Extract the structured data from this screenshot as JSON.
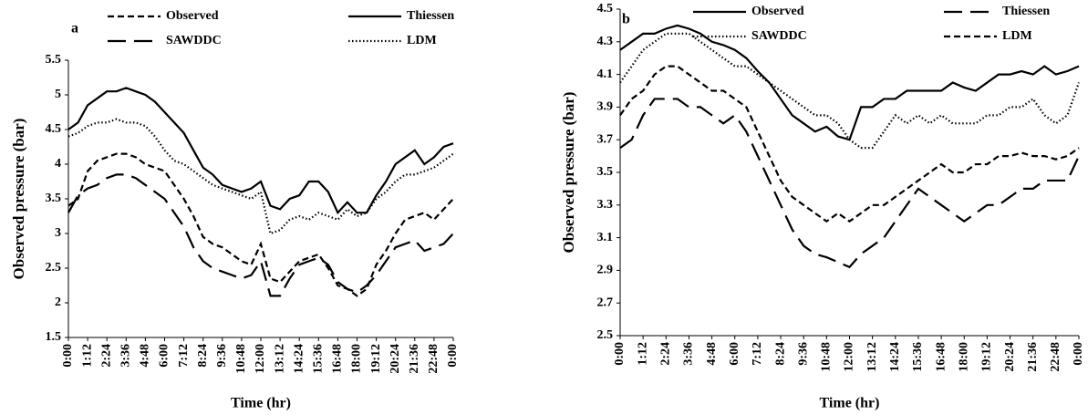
{
  "chart_data": [
    {
      "type": "line",
      "panel_label": "a",
      "x_label": "Time (hr)",
      "y_label": "Observed pressure (bar)",
      "categories": [
        "0:00",
        null,
        "1:12",
        null,
        "2:24",
        null,
        "3:36",
        null,
        "4:48",
        null,
        "6:00",
        null,
        "7:12",
        null,
        "8:24",
        null,
        "9:36",
        null,
        "10:48",
        null,
        "12:00",
        null,
        "13:12",
        null,
        "14:24",
        null,
        "15:36",
        null,
        "16:48",
        null,
        "18:00",
        null,
        "19:12",
        null,
        "20:24",
        null,
        "21:36",
        null,
        "22:48",
        null,
        "0:00"
      ],
      "ylim": [
        1.5,
        5.5
      ],
      "yticks": [
        1.5,
        2,
        2.5,
        3,
        3.5,
        4,
        4.5,
        5,
        5.5
      ],
      "grid": false,
      "series": [
        {
          "name": "Observed",
          "color": "#000000",
          "dash": "dashed",
          "values": [
            3.4,
            3.5,
            3.9,
            4.05,
            4.1,
            4.15,
            4.15,
            4.1,
            4.0,
            3.95,
            3.9,
            3.7,
            3.5,
            3.25,
            2.95,
            2.85,
            2.8,
            2.7,
            2.6,
            2.55,
            2.85,
            2.35,
            2.3,
            2.45,
            2.6,
            2.65,
            2.7,
            2.5,
            2.25,
            2.2,
            2.1,
            2.2,
            2.55,
            2.75,
            3.0,
            3.2,
            3.25,
            3.3,
            3.2,
            3.35,
            3.5
          ]
        },
        {
          "name": "Thiessen",
          "color": "#000000",
          "dash": "solid",
          "values": [
            4.5,
            4.6,
            4.85,
            4.95,
            5.05,
            5.05,
            5.1,
            5.05,
            5.0,
            4.9,
            4.75,
            4.6,
            4.45,
            4.2,
            3.95,
            3.85,
            3.7,
            3.65,
            3.6,
            3.65,
            3.75,
            3.4,
            3.35,
            3.5,
            3.55,
            3.75,
            3.75,
            3.6,
            3.3,
            3.45,
            3.3,
            3.3,
            3.55,
            3.75,
            4.0,
            4.1,
            4.2,
            4.0,
            4.1,
            4.25,
            4.3
          ]
        },
        {
          "name": "SAWDDC",
          "color": "#000000",
          "dash": "longdash",
          "values": [
            3.3,
            3.55,
            3.65,
            3.7,
            3.8,
            3.85,
            3.85,
            3.8,
            3.7,
            3.6,
            3.5,
            3.3,
            3.1,
            2.8,
            2.6,
            2.5,
            2.45,
            2.4,
            2.35,
            2.4,
            2.6,
            2.1,
            2.1,
            2.35,
            2.55,
            2.6,
            2.65,
            2.55,
            2.3,
            2.2,
            2.15,
            2.25,
            2.4,
            2.6,
            2.8,
            2.85,
            2.9,
            2.75,
            2.8,
            2.85,
            3.0
          ]
        },
        {
          "name": "LDM",
          "color": "#000000",
          "dash": "dotted",
          "values": [
            4.4,
            4.45,
            4.55,
            4.6,
            4.6,
            4.65,
            4.6,
            4.6,
            4.55,
            4.4,
            4.2,
            4.05,
            4.0,
            3.9,
            3.8,
            3.7,
            3.65,
            3.6,
            3.55,
            3.5,
            3.6,
            3.0,
            3.05,
            3.2,
            3.25,
            3.2,
            3.3,
            3.25,
            3.2,
            3.35,
            3.25,
            3.3,
            3.5,
            3.6,
            3.75,
            3.85,
            3.85,
            3.9,
            3.95,
            4.05,
            4.15
          ]
        }
      ]
    },
    {
      "type": "line",
      "panel_label": "b",
      "x_label": "Time (hr)",
      "y_label": "Observed pressure (bar)",
      "categories": [
        "0:00",
        null,
        "1:12",
        null,
        "2:24",
        null,
        "3:36",
        null,
        "4:48",
        null,
        "6:00",
        null,
        "7:12",
        null,
        "8:24",
        null,
        "9:36",
        null,
        "10:48",
        null,
        "12:00",
        null,
        "13:12",
        null,
        "14:24",
        null,
        "15:36",
        null,
        "16:48",
        null,
        "18:00",
        null,
        "19:12",
        null,
        "20:24",
        null,
        "21:36",
        null,
        "22:48",
        null,
        "0:00"
      ],
      "ylim": [
        2.5,
        4.5
      ],
      "yticks": [
        2.5,
        2.7,
        2.9,
        3.1,
        3.3,
        3.5,
        3.7,
        3.9,
        4.1,
        4.3,
        4.5
      ],
      "grid": false,
      "series": [
        {
          "name": "Observed",
          "color": "#000000",
          "dash": "solid",
          "values": [
            4.25,
            4.3,
            4.35,
            4.35,
            4.38,
            4.4,
            4.38,
            4.35,
            4.3,
            4.28,
            4.25,
            4.2,
            4.12,
            4.05,
            3.95,
            3.85,
            3.8,
            3.75,
            3.78,
            3.72,
            3.7,
            3.9,
            3.9,
            3.95,
            3.95,
            4.0,
            4.0,
            4.0,
            4.0,
            4.05,
            4.02,
            4.0,
            4.05,
            4.1,
            4.1,
            4.12,
            4.1,
            4.15,
            4.1,
            4.12,
            4.15
          ]
        },
        {
          "name": "Thiessen",
          "color": "#000000",
          "dash": "longdash",
          "values": [
            3.65,
            3.7,
            3.85,
            3.95,
            3.95,
            3.95,
            3.9,
            3.9,
            3.85,
            3.8,
            3.85,
            3.75,
            3.6,
            3.45,
            3.3,
            3.15,
            3.05,
            3.0,
            2.98,
            2.95,
            2.92,
            3.0,
            3.05,
            3.1,
            3.2,
            3.3,
            3.4,
            3.35,
            3.3,
            3.25,
            3.2,
            3.25,
            3.3,
            3.3,
            3.35,
            3.4,
            3.4,
            3.45,
            3.45,
            3.45,
            3.6
          ]
        },
        {
          "name": "SAWDDC",
          "color": "#000000",
          "dash": "dotted",
          "values": [
            4.05,
            4.15,
            4.25,
            4.3,
            4.35,
            4.35,
            4.35,
            4.3,
            4.25,
            4.2,
            4.15,
            4.15,
            4.1,
            4.05,
            4.0,
            3.95,
            3.9,
            3.85,
            3.85,
            3.8,
            3.7,
            3.65,
            3.65,
            3.75,
            3.85,
            3.8,
            3.85,
            3.8,
            3.85,
            3.8,
            3.8,
            3.8,
            3.85,
            3.85,
            3.9,
            3.9,
            3.95,
            3.85,
            3.8,
            3.85,
            4.05
          ]
        },
        {
          "name": "LDM",
          "color": "#000000",
          "dash": "dashed",
          "values": [
            3.85,
            3.95,
            4.0,
            4.1,
            4.15,
            4.15,
            4.1,
            4.05,
            4.0,
            4.0,
            3.95,
            3.9,
            3.75,
            3.6,
            3.45,
            3.35,
            3.3,
            3.25,
            3.2,
            3.25,
            3.2,
            3.25,
            3.3,
            3.3,
            3.35,
            3.4,
            3.45,
            3.5,
            3.55,
            3.5,
            3.5,
            3.55,
            3.55,
            3.6,
            3.6,
            3.62,
            3.6,
            3.6,
            3.58,
            3.6,
            3.65
          ]
        }
      ]
    }
  ]
}
